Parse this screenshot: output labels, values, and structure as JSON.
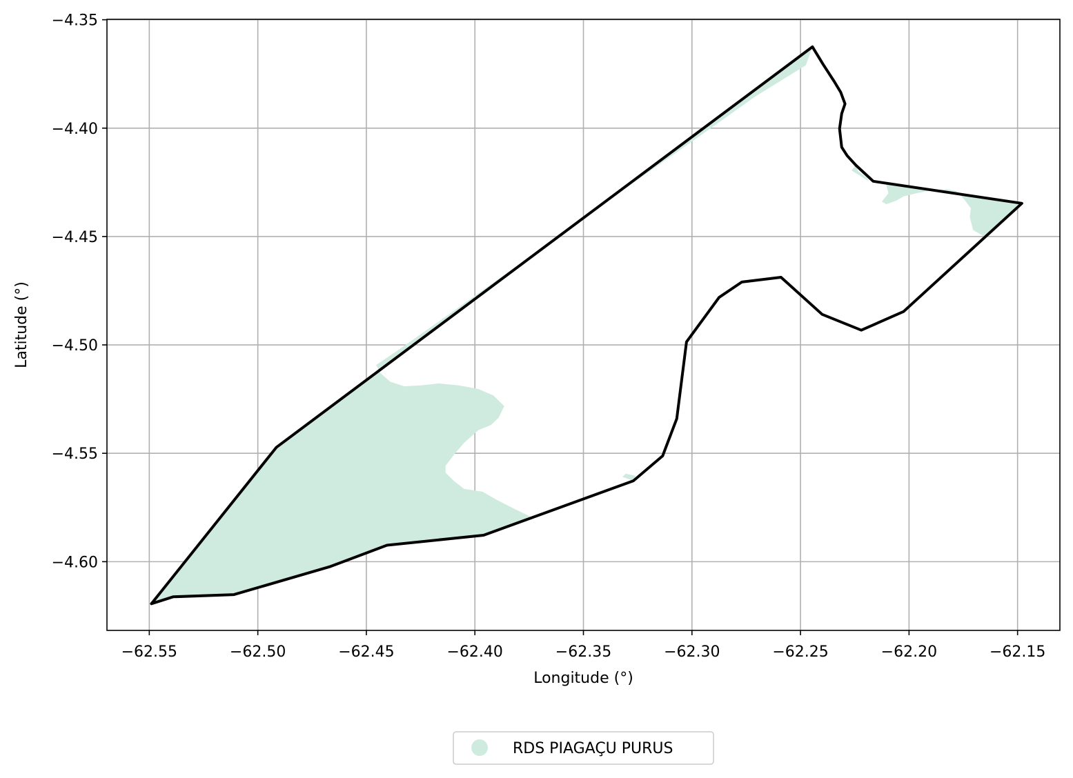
{
  "chart_data": {
    "type": "map",
    "xlabel": "Longitude (°)",
    "ylabel": "Latitude (°)",
    "xlim": [
      -62.5695,
      -62.1305
    ],
    "ylim": [
      -4.6317,
      -4.3498
    ],
    "x_ticks": [
      -62.55,
      -62.5,
      -62.45,
      -62.4,
      -62.35,
      -62.3,
      -62.25,
      -62.2,
      -62.15
    ],
    "x_tick_labels": [
      "−62.55",
      "−62.50",
      "−62.45",
      "−62.40",
      "−62.35",
      "−62.30",
      "−62.25",
      "−62.20",
      "−62.15"
    ],
    "y_ticks": [
      -4.35,
      -4.4,
      -4.45,
      -4.5,
      -4.55,
      -4.6
    ],
    "y_tick_labels": [
      "−4.35",
      "−4.40",
      "−4.45",
      "−4.50",
      "−4.55",
      "−4.60"
    ],
    "grid": true,
    "legend_position": "bottom-center, below axes",
    "legend": [
      {
        "label": "RDS PIAGAÇU PURUS",
        "color": "#cfebdf",
        "marker": "circle"
      }
    ],
    "colors": {
      "fill": "#cfebdf",
      "outline": "#000000",
      "grid": "#b0b0b0"
    },
    "boundary": [
      [
        -62.549,
        -4.6194
      ],
      [
        -62.539,
        -4.6162
      ],
      [
        -62.511,
        -4.6152
      ],
      [
        -62.4665,
        -4.6022
      ],
      [
        -62.4405,
        -4.5924
      ],
      [
        -62.396,
        -4.5878
      ],
      [
        -62.327,
        -4.5627
      ],
      [
        -62.3135,
        -4.5512
      ],
      [
        -62.307,
        -4.534
      ],
      [
        -62.3025,
        -4.4986
      ],
      [
        -62.2875,
        -4.4781
      ],
      [
        -62.277,
        -4.471
      ],
      [
        -62.259,
        -4.4688
      ],
      [
        -62.24,
        -4.4859
      ],
      [
        -62.222,
        -4.4932
      ],
      [
        -62.2025,
        -4.4846
      ],
      [
        -62.148,
        -4.4347
      ],
      [
        -62.2165,
        -4.4245
      ],
      [
        -62.2245,
        -4.4171
      ],
      [
        -62.2285,
        -4.4127
      ],
      [
        -62.231,
        -4.4088
      ],
      [
        -62.232,
        -4.4003
      ],
      [
        -62.231,
        -4.3933
      ],
      [
        -62.2295,
        -4.3888
      ],
      [
        -62.2315,
        -4.3834
      ],
      [
        -62.2345,
        -4.3784
      ],
      [
        -62.2395,
        -4.3707
      ],
      [
        -62.2445,
        -4.3625
      ],
      [
        -62.4915,
        -4.5473
      ],
      [
        -62.549,
        -4.6194
      ]
    ],
    "reserve_regions": [
      [
        [
          -62.549,
          -4.6194
        ],
        [
          -62.539,
          -4.6162
        ],
        [
          -62.511,
          -4.6152
        ],
        [
          -62.4665,
          -4.6022
        ],
        [
          -62.4405,
          -4.5924
        ],
        [
          -62.396,
          -4.5878
        ],
        [
          -62.374,
          -4.5794
        ],
        [
          -62.3815,
          -4.5758
        ],
        [
          -62.3895,
          -4.5717
        ],
        [
          -62.3965,
          -4.5677
        ],
        [
          -62.405,
          -4.5664
        ],
        [
          -62.4095,
          -4.5629
        ],
        [
          -62.4135,
          -4.5589
        ],
        [
          -62.4135,
          -4.5558
        ],
        [
          -62.4095,
          -4.5505
        ],
        [
          -62.405,
          -4.5452
        ],
        [
          -62.3985,
          -4.5394
        ],
        [
          -62.3925,
          -4.5369
        ],
        [
          -62.389,
          -4.5335
        ],
        [
          -62.3865,
          -4.5282
        ],
        [
          -62.3915,
          -4.5233
        ],
        [
          -62.3985,
          -4.5203
        ],
        [
          -62.4075,
          -4.5187
        ],
        [
          -62.4165,
          -4.5178
        ],
        [
          -62.425,
          -4.5187
        ],
        [
          -62.4325,
          -4.5191
        ],
        [
          -62.439,
          -4.517
        ],
        [
          -62.4435,
          -4.513
        ],
        [
          -62.4455,
          -4.5093
        ],
        [
          -62.4375,
          -4.5039
        ],
        [
          -62.4255,
          -4.4955
        ],
        [
          -62.3935,
          -4.4727
        ],
        [
          -62.3625,
          -4.4506
        ],
        [
          -62.3305,
          -4.4277
        ],
        [
          -62.2995,
          -4.4058
        ],
        [
          -62.2705,
          -4.3852
        ],
        [
          -62.2475,
          -4.371
        ],
        [
          -62.2445,
          -4.3625
        ],
        [
          -62.4915,
          -4.5473
        ],
        [
          -62.549,
          -4.6194
        ]
      ],
      [
        [
          -62.332,
          -4.5609
        ],
        [
          -62.3305,
          -4.5594
        ],
        [
          -62.326,
          -4.5604
        ],
        [
          -62.327,
          -4.5627
        ]
      ],
      [
        [
          -62.2165,
          -4.4245
        ],
        [
          -62.148,
          -4.4347
        ],
        [
          -62.1555,
          -4.4416
        ],
        [
          -62.1655,
          -4.4499
        ],
        [
          -62.1705,
          -4.447
        ],
        [
          -62.172,
          -4.441
        ],
        [
          -62.1715,
          -4.437
        ],
        [
          -62.1745,
          -4.433
        ],
        [
          -62.178,
          -4.4291
        ],
        [
          -62.1825,
          -4.4282
        ],
        [
          -62.1895,
          -4.4287
        ],
        [
          -62.1965,
          -4.43
        ],
        [
          -62.2025,
          -4.4315
        ],
        [
          -62.206,
          -4.4335
        ],
        [
          -62.2105,
          -4.4351
        ],
        [
          -62.2125,
          -4.4339
        ],
        [
          -62.2095,
          -4.43
        ],
        [
          -62.2105,
          -4.4259
        ],
        [
          -62.2165,
          -4.4245
        ]
      ],
      [
        [
          -62.2245,
          -4.4171
        ],
        [
          -62.2265,
          -4.4195
        ],
        [
          -62.2225,
          -4.422
        ],
        [
          -62.2185,
          -4.4245
        ],
        [
          -62.2195,
          -4.4229
        ],
        [
          -62.2235,
          -4.4198
        ],
        [
          -62.2245,
          -4.4171
        ]
      ]
    ]
  }
}
